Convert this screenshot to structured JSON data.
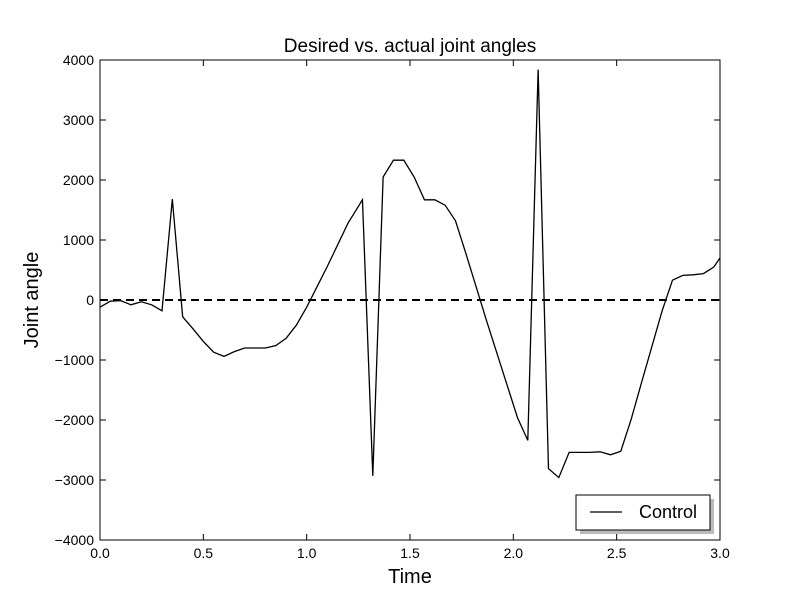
{
  "chart_data": {
    "type": "line",
    "title": "Desired vs. actual joint angles",
    "xlabel": "Time",
    "ylabel": "Joint angle",
    "xlim": [
      0.0,
      3.0
    ],
    "ylim": [
      -4000,
      4000
    ],
    "x_ticks": [
      "0.0",
      "0.5",
      "1.0",
      "1.5",
      "2.0",
      "2.5",
      "3.0"
    ],
    "y_ticks": [
      "4000",
      "3000",
      "2000",
      "1000",
      "0",
      "−1000",
      "−2000",
      "−3000",
      "−4000"
    ],
    "legend_position": "lower-right",
    "grid": false,
    "series": [
      {
        "name": "Control",
        "color": "#000000",
        "style": "solid",
        "x": [
          0.0,
          0.05,
          0.1,
          0.15,
          0.2,
          0.25,
          0.3,
          0.35,
          0.4,
          0.45,
          0.5,
          0.55,
          0.6,
          0.65,
          0.7,
          0.75,
          0.8,
          0.85,
          0.9,
          0.95,
          1.0,
          1.05,
          1.1,
          1.15,
          1.2,
          1.27,
          1.32,
          1.37,
          1.42,
          1.47,
          1.52,
          1.57,
          1.62,
          1.67,
          1.72,
          1.77,
          1.82,
          1.87,
          1.92,
          1.97,
          2.02,
          2.07,
          2.12,
          2.17,
          2.22,
          2.27,
          2.32,
          2.37,
          2.42,
          2.47,
          2.52,
          2.57,
          2.62,
          2.67,
          2.72,
          2.77,
          2.82,
          2.87,
          2.92,
          2.97,
          3.0
        ],
        "y": [
          -120,
          -20,
          -10,
          -80,
          -30,
          -80,
          -180,
          1680,
          -280,
          -480,
          -690,
          -870,
          -940,
          -860,
          -800,
          -800,
          -800,
          -760,
          -640,
          -420,
          -120,
          220,
          560,
          920,
          1280,
          1670,
          -2930,
          2050,
          2330,
          2330,
          2050,
          1670,
          1670,
          1580,
          1320,
          780,
          220,
          -340,
          -880,
          -1420,
          -1960,
          -2340,
          3840,
          -2810,
          -2960,
          -2540,
          -2540,
          -2540,
          -2530,
          -2580,
          -2520,
          -1990,
          -1380,
          -780,
          -180,
          330,
          410,
          420,
          440,
          550,
          700
        ]
      },
      {
        "name": "",
        "color": "#000000",
        "style": "dashed",
        "x": [
          0.0,
          3.0
        ],
        "y": [
          0,
          0
        ]
      }
    ]
  }
}
